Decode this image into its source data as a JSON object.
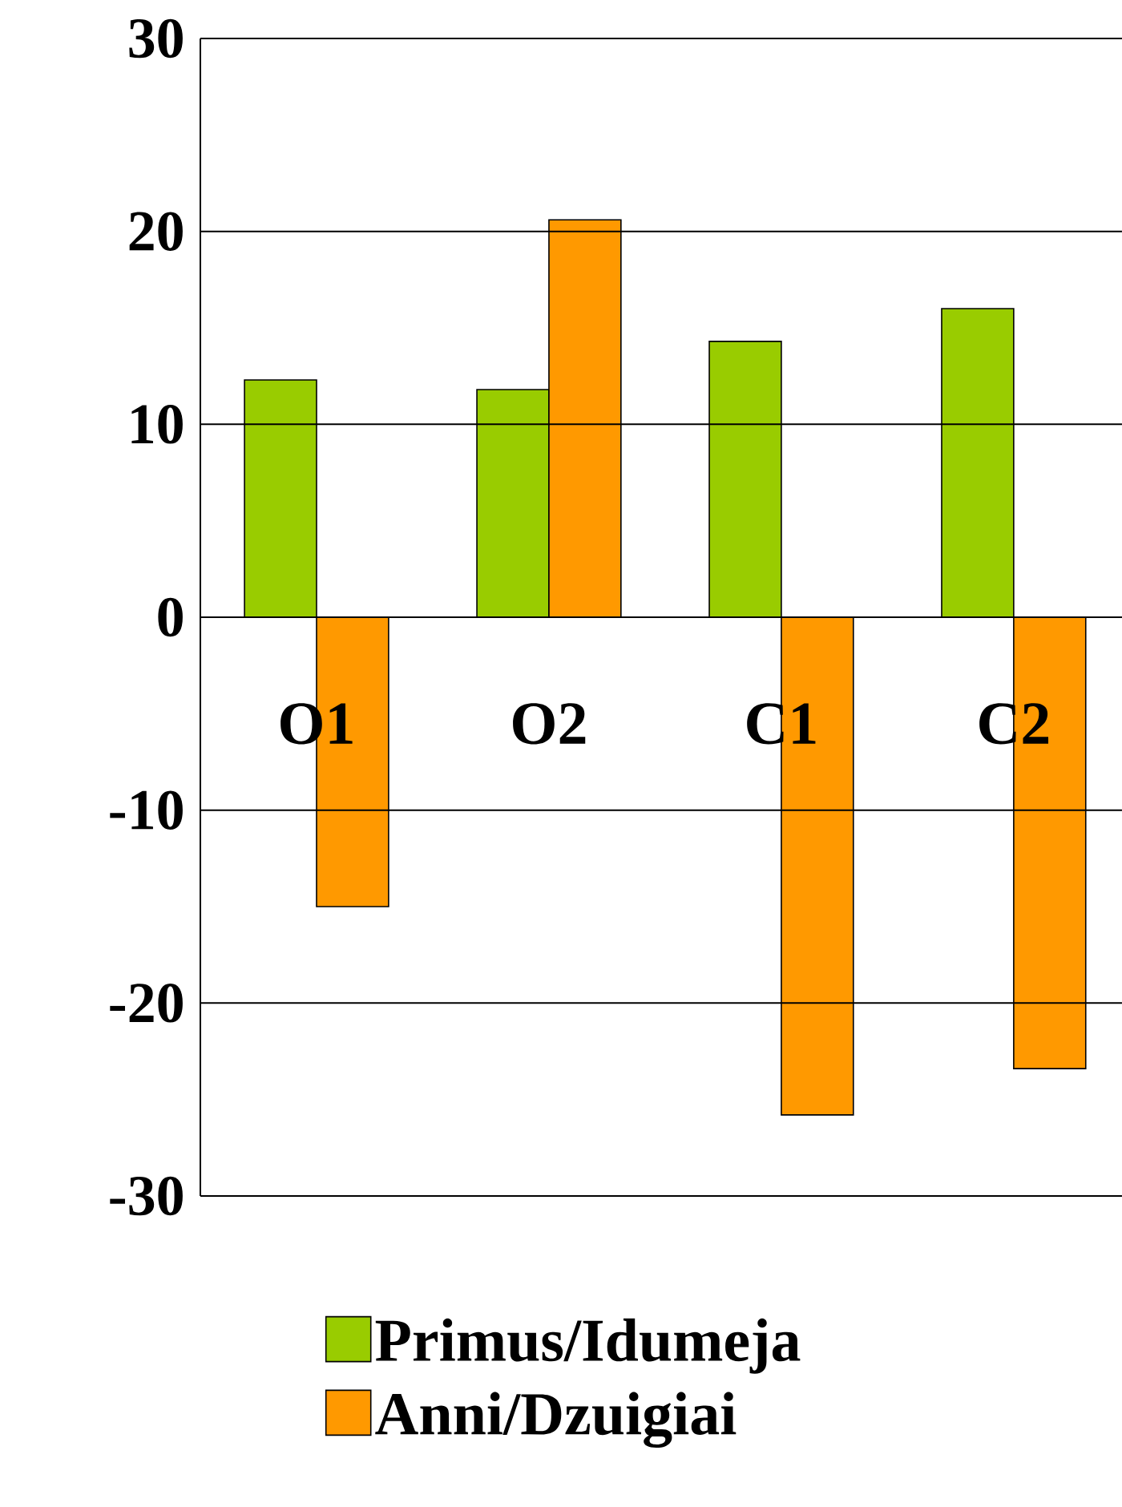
{
  "chart_data": {
    "type": "bar",
    "categories": [
      "O1",
      "O2",
      "C1",
      "C2"
    ],
    "series": [
      {
        "name": "Primus/Idumeja",
        "color": "#99cc00",
        "values": [
          12.3,
          11.8,
          14.3,
          16.0
        ]
      },
      {
        "name": "Anni/Dzuigiai",
        "color": "#ff9900",
        "values": [
          -15.0,
          20.6,
          -25.8,
          -23.4
        ]
      }
    ],
    "ylim": [
      -30,
      30
    ],
    "yticks": [
      -30,
      -20,
      -10,
      0,
      10,
      20,
      30
    ],
    "grid": "y",
    "legend": "bottom"
  }
}
